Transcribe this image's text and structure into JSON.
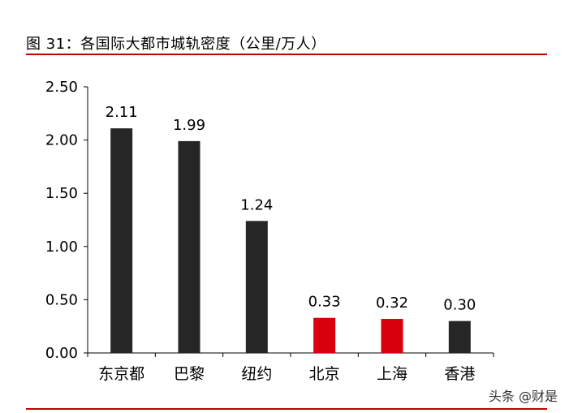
{
  "header": {
    "title": "图 31：各国际大都市城轨密度（公里/万人）"
  },
  "watermark": {
    "text": "头条 @财是"
  },
  "chart_data": {
    "type": "bar",
    "title": "图 31：各国际大都市城轨密度（公里/万人）",
    "xlabel": "",
    "ylabel": "",
    "categories": [
      "东京都",
      "巴黎",
      "纽约",
      "北京",
      "上海",
      "香港"
    ],
    "values": [
      2.11,
      1.99,
      1.24,
      0.33,
      0.32,
      0.3
    ],
    "data_labels": [
      "2.11",
      "1.99",
      "1.24",
      "0.33",
      "0.32",
      "0.30"
    ],
    "bar_colors": [
      "#262626",
      "#262626",
      "#262626",
      "#d9000d",
      "#d9000d",
      "#262626"
    ],
    "ylim": [
      0,
      2.5
    ],
    "yticks": [
      "0.00",
      "0.50",
      "1.00",
      "1.50",
      "2.00",
      "2.50"
    ],
    "grid": false,
    "legend": "none"
  }
}
